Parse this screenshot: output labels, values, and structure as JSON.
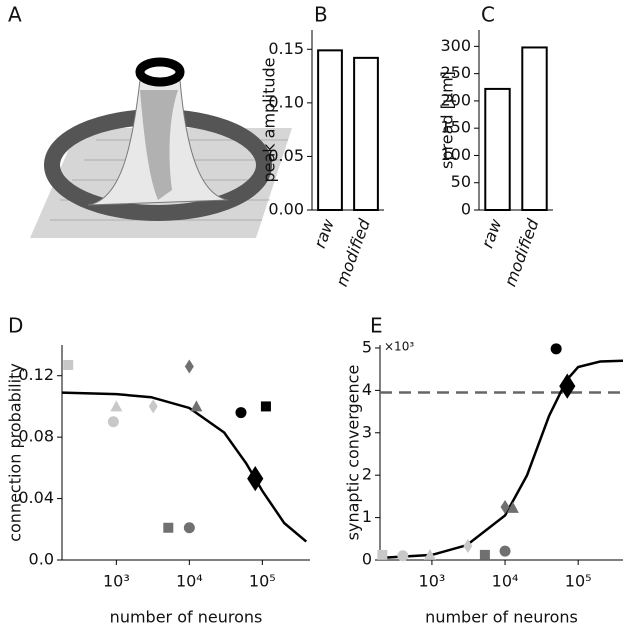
{
  "illustration": {
    "panel": "A"
  },
  "chart_data": [
    {
      "type": "bar",
      "panel": "B",
      "ylabel": "peak amplitude",
      "categories": [
        "raw",
        "modified"
      ],
      "values": [
        0.149,
        0.142
      ],
      "color": "#ffffff",
      "edge_color": "#000000",
      "ylim": [
        0,
        0.168
      ],
      "yticks": [
        {
          "value": 0,
          "label": "0.00"
        },
        {
          "value": 0.05,
          "label": "0.05"
        },
        {
          "value": 0.1,
          "label": "0.10"
        },
        {
          "value": 0.15,
          "label": "0.15"
        }
      ]
    },
    {
      "type": "bar",
      "panel": "C",
      "ylabel": "spread [μm]",
      "categories": [
        "raw",
        "modified"
      ],
      "values": [
        222,
        298
      ],
      "color": "#ffffff",
      "edge_color": "#000000",
      "ylim": [
        0,
        330
      ],
      "yticks": [
        0,
        50,
        100,
        150,
        200,
        250,
        300
      ]
    },
    {
      "type": "scatter",
      "panel": "D",
      "xlabel": "number of neurons",
      "ylabel": "connection probability",
      "xscale": "log",
      "xlim": [
        180,
        450000
      ],
      "xticks": [
        {
          "value": 1000,
          "label": "10³"
        },
        {
          "value": 10000,
          "label": "10⁴"
        },
        {
          "value": 100000,
          "label": "10⁵"
        }
      ],
      "ylim": [
        0,
        0.14
      ],
      "yticks": [
        {
          "value": 0,
          "label": "0.0"
        },
        0.04,
        0.08,
        0.12
      ],
      "series": [
        {
          "marker": "square",
          "color": "#c8c8c8",
          "x": [
            219
          ],
          "values": [
            0.127
          ]
        },
        {
          "marker": "circle",
          "color": "#c8c8c8",
          "x": [
            910
          ],
          "values": [
            0.09
          ]
        },
        {
          "marker": "triangle",
          "color": "#c8c8c8",
          "x": [
            1000
          ],
          "values": [
            0.1
          ]
        },
        {
          "marker": "diamond",
          "color": "#c8c8c8",
          "x": [
            3200
          ],
          "values": [
            0.1
          ]
        },
        {
          "marker": "square",
          "color": "#707070",
          "x": [
            5150
          ],
          "values": [
            0.021
          ]
        },
        {
          "marker": "circle",
          "color": "#707070",
          "x": [
            10000
          ],
          "values": [
            0.021
          ]
        },
        {
          "marker": "diamond",
          "color": "#707070",
          "x": [
            10000
          ],
          "values": [
            0.126
          ]
        },
        {
          "marker": "triangle",
          "color": "#707070",
          "x": [
            12500
          ],
          "values": [
            0.1
          ]
        },
        {
          "marker": "circle",
          "color": "#000000",
          "x": [
            51000
          ],
          "values": [
            0.096
          ]
        },
        {
          "marker": "square",
          "color": "#000000",
          "x": [
            112000
          ],
          "values": [
            0.1
          ]
        },
        {
          "marker": "large-diamond",
          "color": "#000000",
          "x": [
            80000
          ],
          "values": [
            0.053
          ]
        },
        {
          "style": "line",
          "color": "#000000",
          "x": [
            180,
            1000,
            3000,
            10000,
            30000,
            60000,
            100000,
            200000,
            400000
          ],
          "values": [
            0.109,
            0.108,
            0.106,
            0.099,
            0.083,
            0.063,
            0.045,
            0.024,
            0.012
          ]
        }
      ]
    },
    {
      "type": "scatter",
      "panel": "E",
      "xlabel": "number of neurons",
      "ylabel": "synaptic convergence",
      "y_multiplier": "×10³",
      "xscale": "log",
      "xlim": [
        195,
        410000
      ],
      "xticks": [
        {
          "value": 1000,
          "label": "10³"
        },
        {
          "value": 10000,
          "label": "10⁴"
        },
        {
          "value": 100000,
          "label": "10⁵"
        }
      ],
      "ylim": [
        0,
        5.07
      ],
      "yticks": [
        0,
        1,
        2,
        3,
        4,
        5
      ],
      "reference_line": {
        "value": 3.95,
        "color": "#666666",
        "style": "dashed"
      },
      "series": [
        {
          "marker": "square",
          "color": "#c8c8c8",
          "x": [
            210
          ],
          "values": [
            0.12
          ]
        },
        {
          "marker": "circle",
          "color": "#c8c8c8",
          "x": [
            400
          ],
          "values": [
            0.1
          ]
        },
        {
          "marker": "triangle",
          "color": "#c8c8c8",
          "x": [
            940
          ],
          "values": [
            0.12
          ]
        },
        {
          "marker": "diamond",
          "color": "#c8c8c8",
          "x": [
            3100
          ],
          "values": [
            0.33
          ]
        },
        {
          "marker": "square",
          "color": "#707070",
          "x": [
            5300
          ],
          "values": [
            0.12
          ]
        },
        {
          "marker": "circle",
          "color": "#707070",
          "x": [
            10000
          ],
          "values": [
            0.21
          ]
        },
        {
          "marker": "diamond",
          "color": "#707070",
          "x": [
            10000
          ],
          "values": [
            1.25
          ]
        },
        {
          "marker": "triangle",
          "color": "#707070",
          "x": [
            12800
          ],
          "values": [
            1.23
          ]
        },
        {
          "marker": "circle",
          "color": "#000000",
          "x": [
            50000
          ],
          "values": [
            4.98
          ]
        },
        {
          "marker": "large-diamond",
          "color": "#000000",
          "x": [
            71000
          ],
          "values": [
            4.1
          ]
        },
        {
          "style": "line",
          "color": "#000000",
          "x": [
            195,
            1000,
            3000,
            10000,
            20000,
            40000,
            70000,
            100000,
            200000,
            410000
          ],
          "values": [
            0.05,
            0.12,
            0.35,
            1.05,
            2.0,
            3.4,
            4.25,
            4.55,
            4.68,
            4.7
          ]
        }
      ]
    }
  ]
}
